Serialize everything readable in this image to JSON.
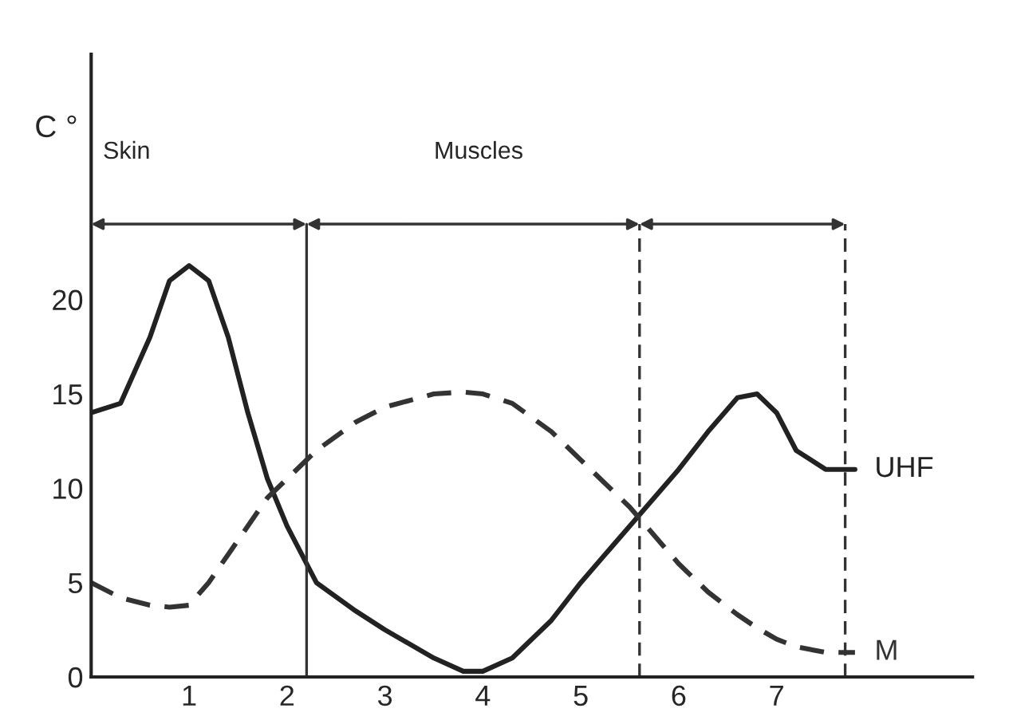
{
  "chart_data": {
    "type": "line",
    "ylabel": "C °",
    "x": [
      0,
      0.3,
      0.6,
      0.8,
      1,
      1.2,
      1.4,
      1.6,
      1.8,
      2,
      2.3,
      2.7,
      3,
      3.5,
      3.8,
      4,
      4.3,
      4.7,
      5,
      5.5,
      6,
      6.3,
      6.6,
      6.8,
      7,
      7.2,
      7.5,
      7.8
    ],
    "series": [
      {
        "name": "UHF",
        "color": "#222222",
        "line_style": "solid",
        "values": [
          14,
          14.5,
          18,
          21,
          21.8,
          21,
          18,
          14,
          10.5,
          8,
          5,
          3.5,
          2.5,
          1,
          0.3,
          0.3,
          1,
          3,
          5,
          8,
          11,
          13,
          14.8,
          15,
          14,
          12,
          11,
          11
        ]
      },
      {
        "name": "M",
        "color": "#333333",
        "line_style": "dashed",
        "values": [
          5,
          4.2,
          3.8,
          3.7,
          3.8,
          5,
          6.5,
          8,
          9.5,
          10.5,
          12,
          13.5,
          14.3,
          15,
          15.1,
          15,
          14.5,
          13,
          11.5,
          9,
          6,
          4.5,
          3.3,
          2.6,
          2,
          1.6,
          1.3,
          1.3
        ]
      }
    ],
    "xlim": [
      0,
      9
    ],
    "xticks": [
      1,
      2,
      3,
      4,
      5,
      6,
      7
    ],
    "ylim": [
      0,
      33
    ],
    "yticks": [
      0,
      5,
      10,
      15,
      20
    ],
    "grid": false,
    "legend": false,
    "ref_lines": [
      {
        "axis": "x",
        "value": 2.2,
        "line_style": "solid"
      },
      {
        "axis": "x",
        "value": 5.6,
        "line_style": "dashed"
      },
      {
        "axis": "x",
        "value": 7.7,
        "line_style": "dashed"
      }
    ],
    "annotations": [
      "Skin",
      "Muscles"
    ]
  }
}
